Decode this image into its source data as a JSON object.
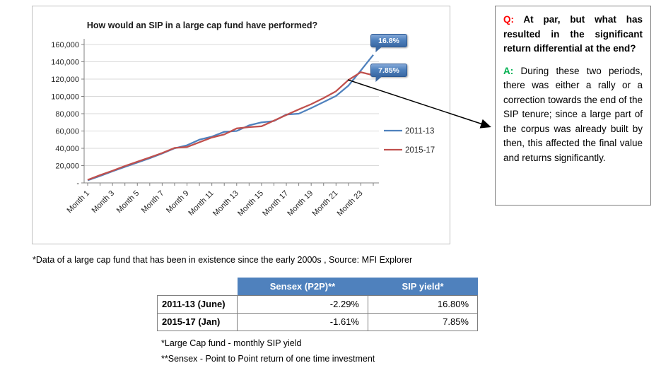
{
  "chart": {
    "title": "How would an SIP in a large cap fund have performed?",
    "callouts": [
      {
        "label": "16.8%"
      },
      {
        "label": "7.85%"
      }
    ]
  },
  "chart_data": {
    "type": "line",
    "title": "How would an SIP in a large cap fund have performed?",
    "categories": [
      "Month 1",
      "Month 2",
      "Month 3",
      "Month 4",
      "Month 5",
      "Month 6",
      "Month 7",
      "Month 8",
      "Month 9",
      "Month 10",
      "Month 11",
      "Month 12",
      "Month 13",
      "Month 14",
      "Month 15",
      "Month 16",
      "Month 17",
      "Month 18",
      "Month 19",
      "Month 20",
      "Month 21",
      "Month 22",
      "Month 23",
      "Month 24"
    ],
    "x_tick_labels_shown": [
      "Month 1",
      "Month 3",
      "Month 5",
      "Month 7",
      "Month 9",
      "Month 11",
      "Month 13",
      "Month 15",
      "Month 17",
      "Month 19",
      "Month 21",
      "Month 23"
    ],
    "y_ticks": [
      "160,000",
      "140,000",
      "120,000",
      "100,000",
      "80,000",
      "60,000",
      "40,000",
      "20,000",
      "-"
    ],
    "ylim": [
      0,
      160000
    ],
    "grid": true,
    "legend_position": "right",
    "series": [
      {
        "name": "2011-13",
        "color": "#4F81BD",
        "values": [
          3000,
          8000,
          13500,
          18500,
          23500,
          28500,
          34000,
          40000,
          43500,
          50000,
          53500,
          59000,
          60000,
          66500,
          70000,
          71500,
          79000,
          80000,
          86500,
          93500,
          100500,
          112500,
          130000,
          148000
        ]
      },
      {
        "name": "2015-17",
        "color": "#C0504D",
        "values": [
          3500,
          9000,
          14000,
          19500,
          24500,
          29500,
          34500,
          40500,
          41500,
          47000,
          52500,
          56000,
          63000,
          64500,
          65500,
          72000,
          78500,
          85000,
          91000,
          98000,
          106000,
          119000,
          128000,
          124500
        ]
      }
    ],
    "annotations": [
      "16.8%",
      "7.85%"
    ]
  },
  "qa": {
    "q_label": "Q:",
    "q_text": "At par, but what has resulted in the significant return differential at the end?",
    "a_label": "A:",
    "a_text": "During these two periods, there was either a rally or a correction towards the end of the SIP tenure; since a large part of the corpus was already built by then, this affected the final value and returns significantly.",
    "q_color": "#FF0000",
    "a_color": "#00B050"
  },
  "footnote_chart": "*Data of a large cap fund that has been in existence since the early 2000s , Source: MFI Explorer",
  "table": {
    "header_bg": "#4F81BD",
    "headers": [
      "",
      "Sensex (P2P)**",
      "SIP yield*"
    ],
    "rows": [
      {
        "label": "2011-13 (June)",
        "sensex": "-2.29%",
        "sip": "16.80%"
      },
      {
        "label": "2015-17 (Jan)",
        "sensex": "-1.61%",
        "sip": "7.85%"
      }
    ]
  },
  "footnotes": [
    "*Large Cap fund - monthly SIP yield",
    "**Sensex - Point to Point return of one time investment"
  ]
}
